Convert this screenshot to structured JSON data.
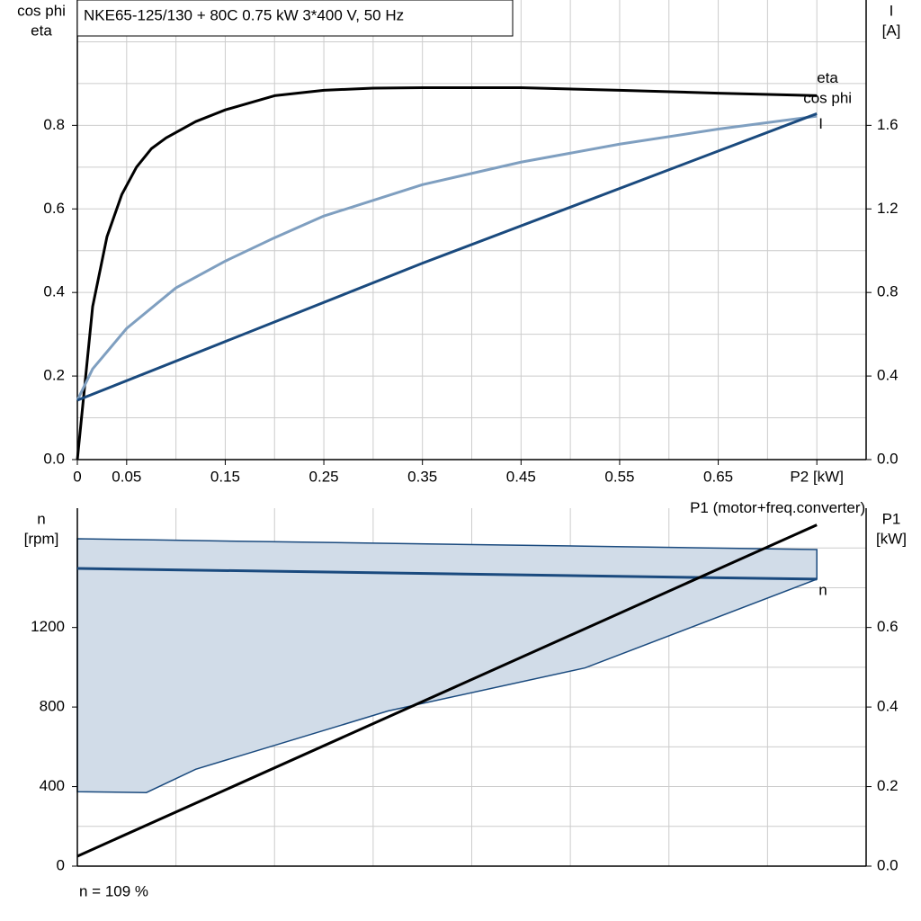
{
  "chart_data": [
    {
      "type": "line",
      "title": "NKE65-125/130 + 80C   0.75 kW   3*400 V, 50 Hz",
      "ylabel": [
        "cos phi",
        "eta"
      ],
      "y2label": [
        "I",
        "[A]"
      ],
      "xlim": [
        0,
        0.8
      ],
      "xticks": [
        0,
        0.05,
        0.15,
        0.25,
        0.35,
        0.45,
        0.55,
        0.65,
        {
          "value": 0.75,
          "label": "P2 [kW]"
        }
      ],
      "xminor": [
        0.1,
        0.2,
        0.3,
        0.4,
        0.5,
        0.6,
        0.7
      ],
      "ylim": [
        0,
        1.1
      ],
      "yticks": [
        {
          "value": 0,
          "label": "0.0"
        },
        0.2,
        0.4,
        0.6,
        0.8
      ],
      "yminor": [
        0.1,
        0.3,
        0.5,
        0.7,
        0.9,
        1.0
      ],
      "y2lim": [
        0,
        2.2
      ],
      "y2ticks": [
        {
          "value": 0,
          "label": "0.0"
        },
        0.4,
        0.8,
        1.2,
        1.6
      ],
      "grid": true,
      "series": [
        {
          "name": "eta",
          "color": "#000000",
          "x": [
            0,
            0.0155,
            0.03,
            0.045,
            0.06,
            0.075,
            0.09,
            0.12,
            0.15,
            0.2,
            0.25,
            0.3,
            0.35,
            0.45,
            0.55,
            0.65,
            0.75
          ],
          "values": [
            0,
            0.366,
            0.533,
            0.634,
            0.7,
            0.744,
            0.77,
            0.809,
            0.837,
            0.871,
            0.884,
            0.889,
            0.89,
            0.89,
            0.884,
            0.877,
            0.871
          ]
        },
        {
          "name": "cos phi",
          "color": "#7f9fc0",
          "x": [
            0,
            0.0155,
            0.05,
            0.1,
            0.15,
            0.2,
            0.25,
            0.35,
            0.45,
            0.55,
            0.65,
            0.75
          ],
          "values": [
            0.142,
            0.217,
            0.314,
            0.411,
            0.475,
            0.531,
            0.583,
            0.658,
            0.712,
            0.755,
            0.791,
            0.822
          ]
        },
        {
          "name": "I",
          "color": "#1a4a7e",
          "axis": "y2",
          "x": [
            0,
            0.35,
            0.75
          ],
          "values": [
            0.284,
            0.94,
            1.656
          ]
        }
      ]
    },
    {
      "type": "line",
      "ylabel": [
        "n",
        "[rpm]"
      ],
      "y2label": [
        "P1",
        "[kW]"
      ],
      "xlim": [
        0,
        0.8
      ],
      "xminor": [
        0.1,
        0.2,
        0.3,
        0.4,
        0.5,
        0.6,
        0.7
      ],
      "ylim": [
        0,
        1800
      ],
      "yticks": [
        0,
        400,
        800,
        1200
      ],
      "yminor": [
        200,
        600,
        1000,
        1400,
        1600
      ],
      "y2lim": [
        0,
        0.9
      ],
      "y2ticks": [
        {
          "value": 0,
          "label": "0.0"
        },
        0.2,
        0.4,
        0.6
      ],
      "grid": true,
      "band": {
        "color": "#1a4a7e",
        "fill": "#d1dce8",
        "x": [
          0,
          0.07,
          0.12,
          0.315,
          0.515,
          0.75
        ],
        "upper": [
          1646,
          1641,
          1637,
          1623,
          1609,
          1592
        ],
        "lower": [
          374,
          370,
          487,
          780,
          997,
          1443
        ]
      },
      "series": [
        {
          "name": "n",
          "color": "#1a4a7e",
          "x": [
            0,
            0.75
          ],
          "values": [
            1497,
            1443
          ]
        },
        {
          "name": "P1 (motor+freq.converter)",
          "color": "#000000",
          "axis": "y2",
          "x": [
            0,
            0.75
          ],
          "values": [
            0.025,
            0.858
          ]
        }
      ],
      "note": "n = 109 %"
    }
  ]
}
